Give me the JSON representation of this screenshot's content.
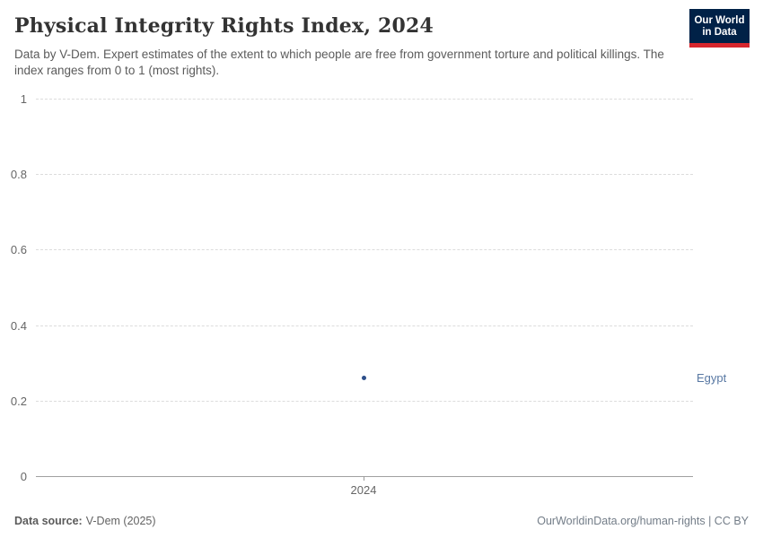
{
  "header": {
    "title": "Physical Integrity Rights Index, 2024",
    "subtitle": "Data by V-Dem. Expert estimates of the extent to which people are free from government torture and political killings. The index ranges from 0 to 1 (most rights).",
    "logo": {
      "line1": "Our World",
      "line2": "in Data",
      "bg_color": "#002147",
      "bar_color": "#d7262d"
    }
  },
  "chart": {
    "y_tick_labels": [
      "1",
      "0.8",
      "0.6",
      "0.4",
      "0.2",
      "0"
    ],
    "x_tick_label": "2024",
    "entity_label": "Egypt"
  },
  "chart_data": {
    "type": "scatter",
    "title": "Physical Integrity Rights Index, 2024",
    "x": [
      2024
    ],
    "xticks": [
      2024
    ],
    "series": [
      {
        "name": "Egypt",
        "values": [
          0.26
        ]
      }
    ],
    "ylim": [
      0,
      1
    ],
    "yticks": [
      0,
      0.2,
      0.4,
      0.6,
      0.8,
      1
    ],
    "grid": "horizontal-dashed",
    "legend_position": "entity-label-right",
    "point_color": "#2d4f8a",
    "label_color": "#5878a3"
  },
  "footer": {
    "source_label": "Data source:",
    "source_value": "V-Dem (2025)",
    "attribution": "OurWorldinData.org/human-rights | CC BY"
  }
}
